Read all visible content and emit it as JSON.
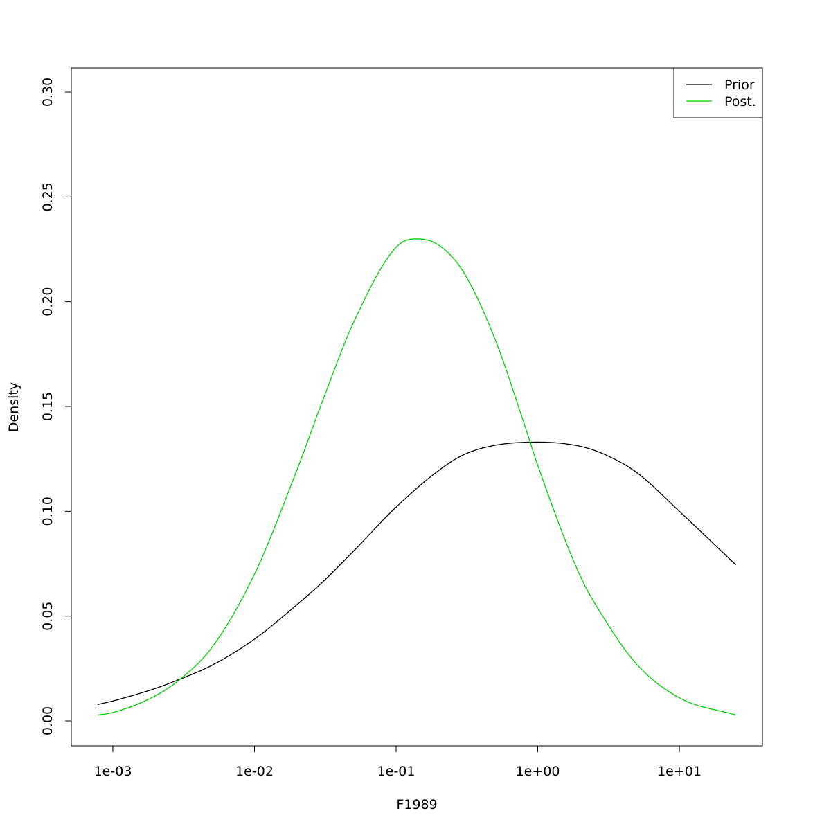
{
  "chart_data": {
    "type": "line",
    "xlabel": "F1989",
    "ylabel": "Density",
    "x_scale": "log10",
    "xlim": [
      0.00078,
      25
    ],
    "ylim": [
      0,
      0.3
    ],
    "x_ticks": [
      {
        "value": 0.001,
        "label": "1e-03"
      },
      {
        "value": 0.01,
        "label": "1e-02"
      },
      {
        "value": 0.1,
        "label": "1e-01"
      },
      {
        "value": 1,
        "label": "1e+00"
      },
      {
        "value": 10,
        "label": "1e+01"
      }
    ],
    "y_ticks": [
      {
        "value": 0.0,
        "label": "0.00"
      },
      {
        "value": 0.05,
        "label": "0.05"
      },
      {
        "value": 0.1,
        "label": "0.10"
      },
      {
        "value": 0.15,
        "label": "0.15"
      },
      {
        "value": 0.2,
        "label": "0.20"
      },
      {
        "value": 0.25,
        "label": "0.25"
      },
      {
        "value": 0.3,
        "label": "0.30"
      }
    ],
    "legend_position": "top-right",
    "series": [
      {
        "name": "Prior",
        "color": "#000000",
        "x": [
          0.00078,
          0.001,
          0.002,
          0.003,
          0.005,
          0.01,
          0.02,
          0.03,
          0.05,
          0.1,
          0.2,
          0.3,
          0.5,
          1,
          2,
          3,
          5,
          10,
          25
        ],
        "y": [
          0.0078,
          0.0095,
          0.0155,
          0.02,
          0.0265,
          0.039,
          0.0555,
          0.066,
          0.081,
          0.102,
          0.1195,
          0.127,
          0.1315,
          0.133,
          0.131,
          0.127,
          0.1185,
          0.1,
          0.0745
        ]
      },
      {
        "name": "Post.",
        "color": "#00cd00",
        "x": [
          0.00078,
          0.001,
          0.002,
          0.003,
          0.005,
          0.01,
          0.02,
          0.03,
          0.05,
          0.1,
          0.14,
          0.2,
          0.3,
          0.5,
          0.8,
          1,
          2,
          3,
          5,
          10,
          25
        ],
        "y": [
          0.0028,
          0.004,
          0.012,
          0.02,
          0.035,
          0.07,
          0.12,
          0.152,
          0.19,
          0.226,
          0.23,
          0.227,
          0.214,
          0.182,
          0.142,
          0.122,
          0.069,
          0.048,
          0.027,
          0.011,
          0.0028
        ]
      }
    ]
  }
}
